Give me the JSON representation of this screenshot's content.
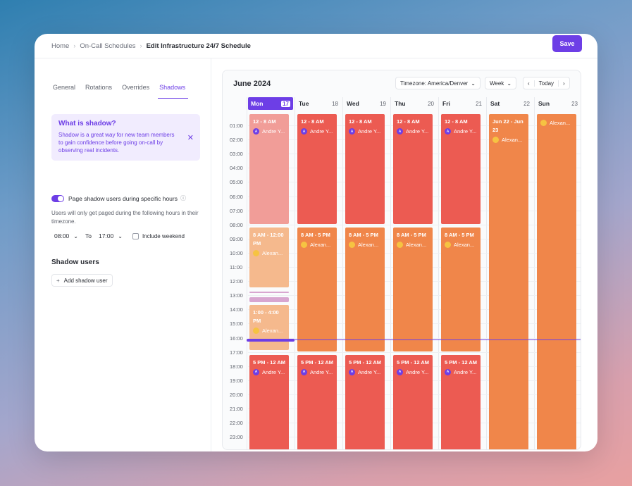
{
  "breadcrumb": [
    "Home",
    "On-Call Schedules",
    "Edit Infrastructure 24/7 Schedule"
  ],
  "save_label": "Save",
  "tabs": [
    "General",
    "Rotations",
    "Overrides",
    "Shadows"
  ],
  "info": {
    "title": "What is shadow?",
    "text": "Shadow is a great way for new team members to gain confidence before going on-call by observing real incidents."
  },
  "toggle_label": "Page shadow users during specific hours",
  "desc": "Users will only get paged during the following hours in their timezone.",
  "time_from": "08:00",
  "to_label": "To",
  "time_to": "17:00",
  "weekend_label": "Include weekend",
  "shadow_users_title": "Shadow users",
  "add_shadow_label": "Add shadow user",
  "calendar": {
    "title": "June 2024",
    "timezone": "Timezone: America/Denver",
    "view": "Week",
    "today": "Today",
    "days": [
      {
        "name": "Mon",
        "num": "17"
      },
      {
        "name": "Tue",
        "num": "18"
      },
      {
        "name": "Wed",
        "num": "19"
      },
      {
        "name": "Thu",
        "num": "20"
      },
      {
        "name": "Fri",
        "num": "21"
      },
      {
        "name": "Sat",
        "num": "22"
      },
      {
        "name": "Sun",
        "num": "23"
      }
    ],
    "hours": [
      "01:00",
      "02:00",
      "03:00",
      "04:00",
      "05:00",
      "06:00",
      "07:00",
      "08:00",
      "09:00",
      "10:00",
      "11:00",
      "12:00",
      "13:00",
      "14:00",
      "15:00",
      "16:00",
      "17:00",
      "18:00",
      "19:00",
      "20:00",
      "21:00",
      "22:00",
      "23:00"
    ],
    "blocks": {
      "mon_night": "12 - 8 AM",
      "night": "12 - 8 AM",
      "day": "8 AM - 5 PM",
      "mon_day": "8 AM - 12:00 PM",
      "mon_pm": "1:00 - 4:00 PM",
      "evening": "5 PM - 12 AM",
      "weekend": "Jun 22 - Jun 23",
      "andre": "Andre Y...",
      "alexan": "Alexan...",
      "alexan_sun": "Alexan..."
    }
  },
  "colors": {
    "accent": "#6d3ee6",
    "red": "#ec5b52",
    "orange": "#f0864a",
    "mon_light": "#f19d98",
    "mon_light_orange": "#f5b98d"
  }
}
